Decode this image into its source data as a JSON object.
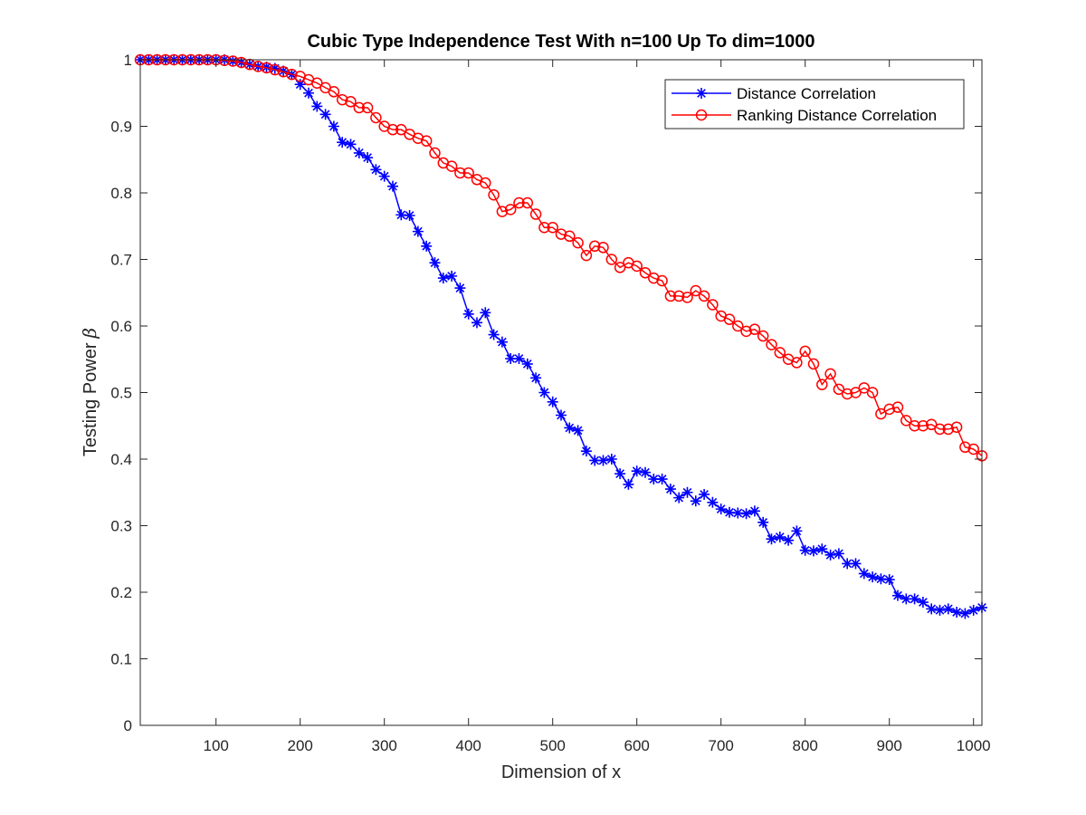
{
  "chart_data": {
    "type": "line",
    "title": "Cubic Type Independence Test With n=100 Up To dim=1000",
    "xlabel": "Dimension of x",
    "ylabel": "Testing Power",
    "ylabel_symbol": "β",
    "xlim": [
      10,
      1010
    ],
    "ylim": [
      0,
      1
    ],
    "xticks": [
      100,
      200,
      300,
      400,
      500,
      600,
      700,
      800,
      900,
      1000
    ],
    "yticks": [
      0,
      0.1,
      0.2,
      0.3,
      0.4,
      0.5,
      0.6,
      0.7,
      0.8,
      0.9,
      1
    ],
    "ytick_labels": [
      "0",
      "0.1",
      "0.2",
      "0.3",
      "0.4",
      "0.5",
      "0.6",
      "0.7",
      "0.8",
      "0.9",
      "1"
    ],
    "grid": false,
    "legend_position": "top-right",
    "x": [
      10,
      20,
      30,
      40,
      50,
      60,
      70,
      80,
      90,
      100,
      110,
      120,
      130,
      140,
      150,
      160,
      170,
      180,
      190,
      200,
      210,
      220,
      230,
      240,
      250,
      260,
      270,
      280,
      290,
      300,
      310,
      320,
      330,
      340,
      350,
      360,
      370,
      380,
      390,
      400,
      410,
      420,
      430,
      440,
      450,
      460,
      470,
      480,
      490,
      500,
      510,
      520,
      530,
      540,
      550,
      560,
      570,
      580,
      590,
      600,
      610,
      620,
      630,
      640,
      650,
      660,
      670,
      680,
      690,
      700,
      710,
      720,
      730,
      740,
      750,
      760,
      770,
      780,
      790,
      800,
      810,
      820,
      830,
      840,
      850,
      860,
      870,
      880,
      890,
      900,
      910,
      920,
      930,
      940,
      950,
      960,
      970,
      980,
      990,
      1000,
      1010
    ],
    "series": [
      {
        "name": "Distance Correlation",
        "color": "#0000ff",
        "marker": "asterisk",
        "values": [
          1.0,
          1.0,
          1.0,
          1.0,
          1.0,
          1.0,
          1.0,
          1.0,
          1.0,
          1.0,
          1.0,
          0.998,
          0.996,
          0.993,
          0.99,
          0.989,
          0.987,
          0.983,
          0.978,
          0.963,
          0.95,
          0.93,
          0.918,
          0.9,
          0.876,
          0.873,
          0.86,
          0.853,
          0.835,
          0.825,
          0.81,
          0.767,
          0.766,
          0.742,
          0.72,
          0.695,
          0.672,
          0.675,
          0.657,
          0.618,
          0.605,
          0.62,
          0.587,
          0.576,
          0.551,
          0.551,
          0.543,
          0.522,
          0.5,
          0.486,
          0.466,
          0.447,
          0.443,
          0.412,
          0.398,
          0.398,
          0.4,
          0.378,
          0.362,
          0.382,
          0.38,
          0.37,
          0.37,
          0.355,
          0.342,
          0.35,
          0.337,
          0.347,
          0.335,
          0.325,
          0.32,
          0.319,
          0.318,
          0.322,
          0.305,
          0.28,
          0.283,
          0.278,
          0.292,
          0.263,
          0.262,
          0.265,
          0.256,
          0.258,
          0.243,
          0.243,
          0.228,
          0.223,
          0.22,
          0.219,
          0.195,
          0.19,
          0.19,
          0.185,
          0.175,
          0.173,
          0.175,
          0.17,
          0.168,
          0.173,
          0.177
        ]
      },
      {
        "name": "Ranking Distance Correlation",
        "color": "#ff0000",
        "marker": "circle",
        "values": [
          1.0,
          1.0,
          1.0,
          1.0,
          1.0,
          1.0,
          1.0,
          1.0,
          1.0,
          1.0,
          0.999,
          0.998,
          0.996,
          0.993,
          0.99,
          0.988,
          0.985,
          0.982,
          0.978,
          0.975,
          0.97,
          0.965,
          0.958,
          0.952,
          0.94,
          0.937,
          0.928,
          0.928,
          0.913,
          0.9,
          0.895,
          0.895,
          0.888,
          0.882,
          0.878,
          0.86,
          0.845,
          0.84,
          0.83,
          0.83,
          0.82,
          0.815,
          0.797,
          0.772,
          0.775,
          0.785,
          0.785,
          0.768,
          0.748,
          0.748,
          0.738,
          0.735,
          0.725,
          0.706,
          0.72,
          0.718,
          0.7,
          0.688,
          0.695,
          0.69,
          0.68,
          0.672,
          0.668,
          0.645,
          0.645,
          0.643,
          0.653,
          0.645,
          0.632,
          0.615,
          0.61,
          0.6,
          0.592,
          0.595,
          0.585,
          0.572,
          0.56,
          0.55,
          0.545,
          0.562,
          0.543,
          0.512,
          0.528,
          0.505,
          0.498,
          0.5,
          0.507,
          0.5,
          0.468,
          0.475,
          0.478,
          0.458,
          0.45,
          0.45,
          0.452,
          0.445,
          0.445,
          0.448,
          0.418,
          0.415,
          0.405
        ]
      }
    ]
  }
}
